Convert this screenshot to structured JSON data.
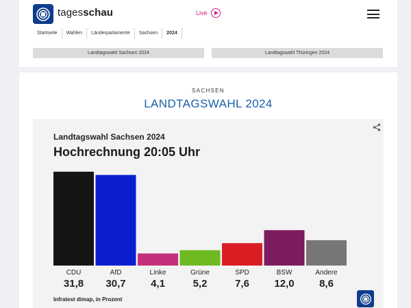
{
  "header": {
    "logo_word_light": "tages",
    "logo_word_bold": "schau",
    "logo_icon": "ard-logo-icon",
    "live_label": "Live",
    "live_icon": "play-circle-icon",
    "menu_icon": "hamburger-menu-icon",
    "accent_color": "#d41a8c",
    "brand_color": "#0d3d8c"
  },
  "breadcrumb": [
    "Startseite",
    "Wahlen",
    "Länderparlamente",
    "Sachsen",
    "2024"
  ],
  "election_tabs": [
    "Landtagswahl Sachsen 2024",
    "Landtagswahl Thüringen 2024"
  ],
  "main": {
    "region": "SACHSEN",
    "headline": "LANDTAGSWAHL 2024",
    "headline_color": "#1b5fa8"
  },
  "chart": {
    "share_icon": "share-icon",
    "source": "Infratest dimap, in Prozent",
    "badge_icon": "ard-logo-icon"
  },
  "chart_data": {
    "type": "bar",
    "title": "Hochrechnung 20:05 Uhr",
    "subtitle": "Landtagswahl Sachsen 2024",
    "categories": [
      "CDU",
      "AfD",
      "Linke",
      "Grüne",
      "SPD",
      "BSW",
      "Andere"
    ],
    "values": [
      31.8,
      30.7,
      4.1,
      5.2,
      7.6,
      12.0,
      8.6
    ],
    "value_labels": [
      "31,8",
      "30,7",
      "4,1",
      "5,2",
      "7,6",
      "12,0",
      "8,6"
    ],
    "colors": [
      "#151515",
      "#0a1ecf",
      "#c2307a",
      "#6fba20",
      "#d91e23",
      "#7b1d5e",
      "#777777"
    ],
    "ylim": [
      0,
      32
    ],
    "grid": false,
    "legend": "none"
  }
}
